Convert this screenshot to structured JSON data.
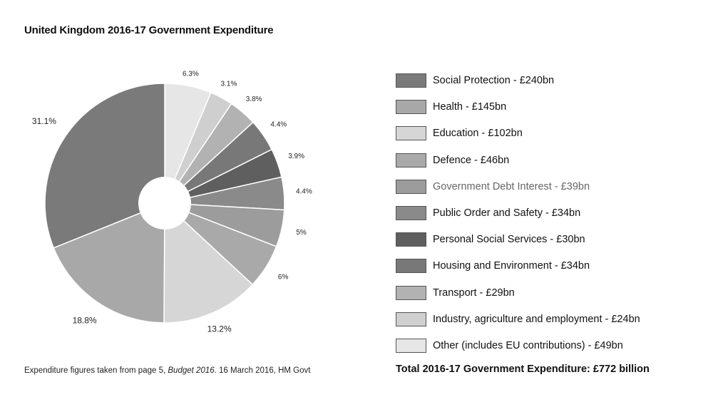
{
  "title": "United Kingdom 2016-17 Government Expenditure",
  "chart_data": {
    "type": "pie",
    "subtype": "donut",
    "title": "United Kingdom 2016-17 Government Expenditure",
    "start_angle_deg": 0,
    "direction": "clockwise",
    "slices": [
      {
        "label": "Other (includes EU contributions) - £49bn",
        "name": "Other (includes EU contributions)",
        "value_bn": 49,
        "percent_label": "6.3%",
        "percent": 6.3,
        "color": "#e6e6e6"
      },
      {
        "label": "Industry, agriculture and employment - £24bn",
        "name": "Industry, agriculture and employment",
        "value_bn": 24,
        "percent_label": "3.1%",
        "percent": 3.1,
        "color": "#cfcfcf"
      },
      {
        "label": "Transport - £29bn",
        "name": "Transport",
        "value_bn": 29,
        "percent_label": "3.8%",
        "percent": 3.8,
        "color": "#b2b2b2"
      },
      {
        "label": "Housing and Environment - £34bn",
        "name": "Housing and Environment",
        "value_bn": 34,
        "percent_label": "4.4%",
        "percent": 4.4,
        "color": "#787878"
      },
      {
        "label": "Personal Social Services - £30bn",
        "name": "Personal Social Services",
        "value_bn": 30,
        "percent_label": "3.9%",
        "percent": 3.9,
        "color": "#5f5f5f"
      },
      {
        "label": "Public Order and Safety - £34bn",
        "name": "Public Order and Safety",
        "value_bn": 34,
        "percent_label": "4.4%",
        "percent": 4.4,
        "color": "#8a8a8a"
      },
      {
        "label": "Government Debt Interest - £39bn",
        "name": "Government Debt Interest",
        "value_bn": 39,
        "percent_label": "5%",
        "percent": 5.0,
        "color": "#9c9c9c"
      },
      {
        "label": "Defence - £46bn",
        "name": "Defence",
        "value_bn": 46,
        "percent_label": "6%",
        "percent": 6.0,
        "color": "#a9a9a9"
      },
      {
        "label": "Education - £102bn",
        "name": "Education",
        "value_bn": 102,
        "percent_label": "13.2%",
        "percent": 13.2,
        "color": "#d6d6d6"
      },
      {
        "label": "Health - £145bn",
        "name": "Health",
        "value_bn": 145,
        "percent_label": "18.8%",
        "percent": 18.8,
        "color": "#a8a8a8"
      },
      {
        "label": "Social Protection - £240bn",
        "name": "Social Protection",
        "value_bn": 240,
        "percent_label": "31.1%",
        "percent": 31.1,
        "color": "#7a7a7a"
      }
    ]
  },
  "legend": [
    {
      "label": "Social Protection - £240bn",
      "color": "#7a7a7a"
    },
    {
      "label": "Health - £145bn",
      "color": "#a8a8a8"
    },
    {
      "label": "Education - £102bn",
      "color": "#d6d6d6"
    },
    {
      "label": "Defence - £46bn",
      "color": "#a9a9a9"
    },
    {
      "label": "Government Debt Interest - £39bn",
      "color": "#9c9c9c"
    },
    {
      "label": "Public Order and Safety - £34bn",
      "color": "#8a8a8a"
    },
    {
      "label": "Personal Social Services - £30bn",
      "color": "#5f5f5f"
    },
    {
      "label": "Housing and Environment - £34bn",
      "color": "#787878"
    },
    {
      "label": "Transport - £29bn",
      "color": "#b2b2b2"
    },
    {
      "label": "Industry, agriculture and employment - £24bn",
      "color": "#cfcfcf"
    },
    {
      "label": "Other (includes EU contributions) - £49bn",
      "color": "#e6e6e6"
    }
  ],
  "footnote": {
    "prefix": "Expenditure figures taken from page 5, ",
    "source_title": "Budget 2016",
    "suffix": ". 16 March 2016, HM Govt"
  },
  "total": "Total 2016-17 Government Expenditure: £772 billion"
}
